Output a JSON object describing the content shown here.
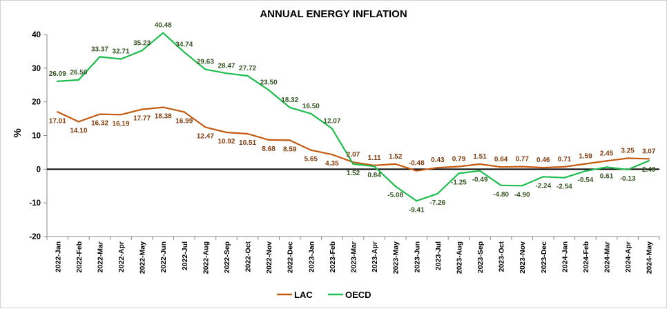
{
  "chart_data": {
    "type": "line",
    "title": "ANNUAL ENERGY INFLATION",
    "ylabel": "%",
    "xlabel": "",
    "ylim": [
      -20,
      40
    ],
    "yticks": [
      -20,
      -10,
      0,
      10,
      20,
      30,
      40
    ],
    "grid": false,
    "legend_position": "bottom",
    "categories": [
      "2022-Jan",
      "2022-Feb",
      "2022-Mar",
      "2022-Apr",
      "2022-May",
      "2022-Jun",
      "2022-Jul",
      "2022-Aug",
      "2022-Sep",
      "2022-Oct",
      "2022-Nov",
      "2022-Dec",
      "2023-Jan",
      "2023-Feb",
      "2023-Mar",
      "2023-Apr",
      "2023-May",
      "2023-Jun",
      "2023-Jul",
      "2023-Aug",
      "2023-Sep",
      "2023-Oct",
      "2023-Nov",
      "2023-Dec",
      "2024-Jan",
      "2024-Feb",
      "2024-Mar",
      "2024-Apr",
      "2024-May"
    ],
    "series": [
      {
        "name": "LAC",
        "color": "#C55A11",
        "values": [
          17.01,
          14.1,
          16.32,
          16.19,
          17.77,
          18.38,
          16.99,
          12.47,
          10.92,
          10.51,
          8.68,
          8.59,
          5.65,
          4.35,
          2.07,
          1.11,
          1.52,
          -0.48,
          0.43,
          0.79,
          1.51,
          0.64,
          0.77,
          0.46,
          0.71,
          1.59,
          2.45,
          3.25,
          3.07
        ],
        "labels": [
          "17.01",
          "14.10",
          "16.32",
          "16.19",
          "17.77",
          "18.38",
          "16.99",
          "12.47",
          "10.92",
          "10.51",
          "8.68",
          "8.59",
          "5.65",
          "4.35",
          "2.07",
          "1.11",
          "1.52",
          "-0.48",
          "0.43",
          "0.79",
          "1.51",
          "0.64",
          "0.77",
          "0.46",
          "0.71",
          "1.59",
          "2.45",
          "3.25",
          "3.07"
        ]
      },
      {
        "name": "OECD",
        "color": "#1EBE4E",
        "values": [
          26.09,
          26.5,
          33.37,
          32.71,
          35.23,
          40.48,
          34.74,
          29.63,
          28.47,
          27.72,
          23.5,
          18.32,
          16.5,
          12.07,
          1.52,
          0.84,
          -5.08,
          -9.41,
          -7.26,
          -1.25,
          -0.49,
          -4.8,
          -4.9,
          -2.24,
          -2.54,
          -0.54,
          0.61,
          -0.13,
          2.49
        ],
        "labels": [
          "26.09",
          "26.50",
          "33.37",
          "32.71",
          "35.23",
          "40.48",
          "34.74",
          "29.63",
          "28.47",
          "27.72",
          "23.50",
          "18.32",
          "16.50",
          "12.07",
          "1.52",
          "0.84",
          "-5.08",
          "-9.41",
          "-7.26",
          "-1.25",
          "-0.49",
          "-4.80",
          "-4.90",
          "-2.24",
          "-2.54",
          "-0.54",
          "0.61",
          "-0.13",
          "2.49"
        ]
      }
    ]
  }
}
